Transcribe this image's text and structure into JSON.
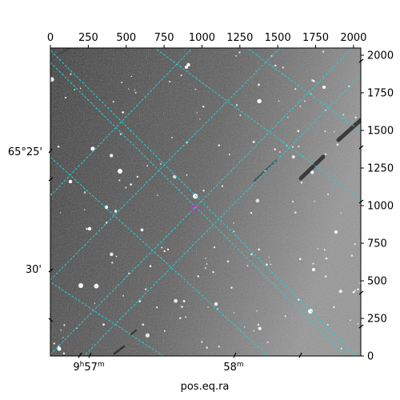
{
  "chart_data": {
    "type": "scatter",
    "title": "",
    "xlabel": "pos.eq.ra",
    "ylabel": "",
    "pixel_axes": {
      "x_ticks": [
        "0",
        "250",
        "500",
        "750",
        "1000",
        "1250",
        "1500",
        "1750",
        "2000"
      ],
      "y_ticks": [
        "0",
        "250",
        "500",
        "750",
        "1000",
        "1250",
        "1500",
        "1750",
        "2000"
      ],
      "xlim": [
        0,
        2048
      ],
      "ylim": [
        0,
        2048
      ]
    },
    "world_axes": {
      "ra_ticks": [
        {
          "h": "9",
          "m": "57"
        },
        {
          "h": "",
          "m": "58"
        }
      ],
      "dec_ticks": [
        "65°25'",
        "30'"
      ]
    },
    "grid": true,
    "grid_color": "#22d0d0",
    "marker": {
      "x": 950,
      "y": 980,
      "color": "#dd22dd",
      "shape": "circle"
    },
    "image": {
      "kind": "grayscale sky image with stars and satellite trails"
    }
  }
}
